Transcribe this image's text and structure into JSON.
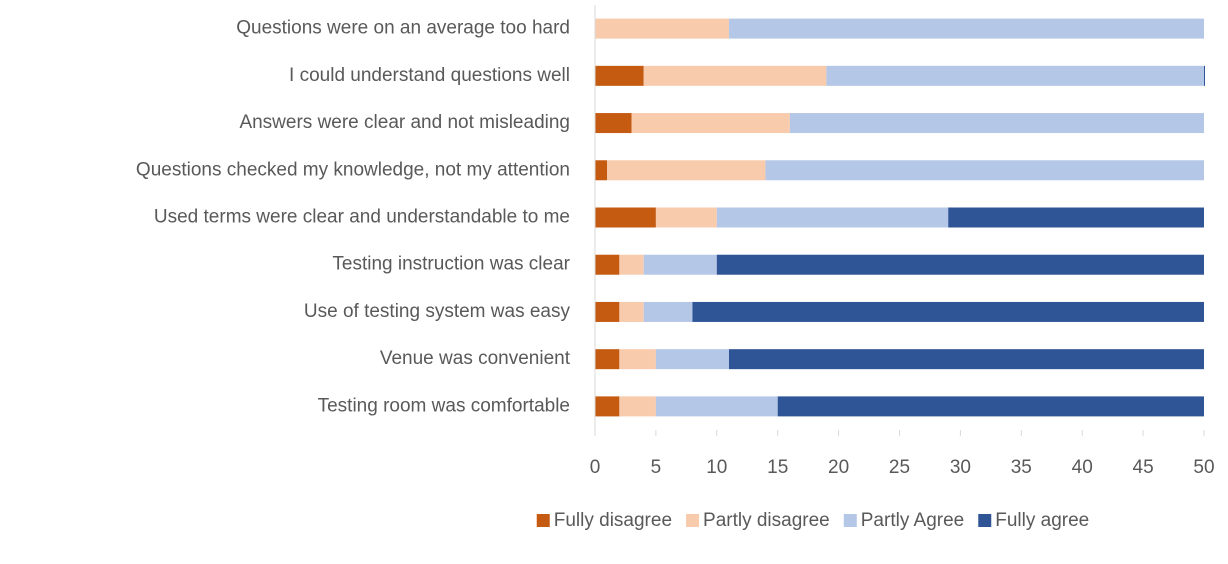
{
  "chart_data": {
    "type": "stacked_barh",
    "categories": [
      "Questions were on an average too hard",
      "I could understand questions well",
      "Answers were clear and not misleading",
      "Questions checked my knowledge, not my attention",
      "Used terms were clear and understandable to me",
      "Testing instruction was clear",
      "Use of testing system was easy",
      "Venue was convenient",
      "Testing room was comfortable"
    ],
    "series": [
      {
        "name": "Fully disagree",
        "color": "#c55a11",
        "values": [
          0,
          4,
          3,
          1,
          5,
          2,
          2,
          2,
          2
        ]
      },
      {
        "name": "Partly disagree",
        "color": "#f8cbad",
        "values": [
          11,
          15,
          13,
          13,
          5,
          2,
          2,
          3,
          3
        ]
      },
      {
        "name": "Partly Agree",
        "color": "#b4c7e7",
        "values": [
          39,
          31,
          34,
          36,
          19,
          6,
          4,
          6,
          10
        ]
      },
      {
        "name": "Fully agree",
        "color": "#2f5597",
        "values": [
          0,
          1,
          0,
          0,
          21,
          40,
          42,
          39,
          35
        ]
      }
    ],
    "xlim": [
      0,
      50
    ],
    "xticks": [
      0,
      5,
      10,
      15,
      20,
      25,
      30,
      35,
      40,
      45,
      50
    ],
    "legend": "bottom"
  }
}
